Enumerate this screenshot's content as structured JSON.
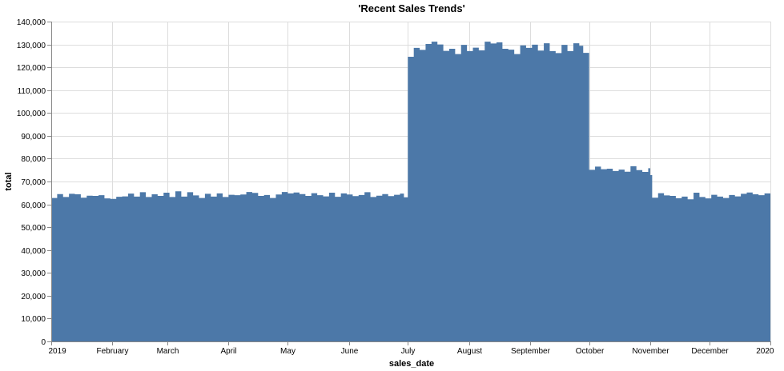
{
  "chart_data": {
    "type": "area",
    "title": "'Recent Sales Trends'",
    "xlabel": "sales_date",
    "ylabel": "total",
    "x_range": [
      "2019-01-01",
      "2020-01-01"
    ],
    "ylim": [
      0,
      140000
    ],
    "y_ticks": [
      0,
      10000,
      20000,
      30000,
      40000,
      50000,
      60000,
      70000,
      80000,
      90000,
      100000,
      110000,
      120000,
      130000,
      140000
    ],
    "y_tick_labels": [
      "0",
      "10,000",
      "20,000",
      "30,000",
      "40,000",
      "50,000",
      "60,000",
      "70,000",
      "80,000",
      "90,000",
      "100,000",
      "110,000",
      "120,000",
      "130,000",
      "140,000"
    ],
    "x_ticks": [
      {
        "date": "2019-01-01",
        "label": "2019"
      },
      {
        "date": "2019-02-01",
        "label": "February"
      },
      {
        "date": "2019-03-01",
        "label": "March"
      },
      {
        "date": "2019-04-01",
        "label": "April"
      },
      {
        "date": "2019-05-01",
        "label": "May"
      },
      {
        "date": "2019-06-01",
        "label": "June"
      },
      {
        "date": "2019-07-01",
        "label": "July"
      },
      {
        "date": "2019-08-01",
        "label": "August"
      },
      {
        "date": "2019-09-01",
        "label": "September"
      },
      {
        "date": "2019-10-01",
        "label": "October"
      },
      {
        "date": "2019-11-01",
        "label": "November"
      },
      {
        "date": "2019-12-01",
        "label": "December"
      },
      {
        "date": "2020-01-01",
        "label": "2020"
      }
    ],
    "grid": true,
    "color": "#4c78a8",
    "points": [
      [
        "2019-01-01",
        62800
      ],
      [
        "2019-01-04",
        64500
      ],
      [
        "2019-01-07",
        63200
      ],
      [
        "2019-01-10",
        64600
      ],
      [
        "2019-01-13",
        64400
      ],
      [
        "2019-01-16",
        62900
      ],
      [
        "2019-01-19",
        63800
      ],
      [
        "2019-01-22",
        63700
      ],
      [
        "2019-01-25",
        64000
      ],
      [
        "2019-01-28",
        62600
      ],
      [
        "2019-01-31",
        62400
      ],
      [
        "2019-02-03",
        63300
      ],
      [
        "2019-02-06",
        63500
      ],
      [
        "2019-02-09",
        64700
      ],
      [
        "2019-02-12",
        63400
      ],
      [
        "2019-02-15",
        65300
      ],
      [
        "2019-02-18",
        63200
      ],
      [
        "2019-02-21",
        64400
      ],
      [
        "2019-02-24",
        63700
      ],
      [
        "2019-02-27",
        65100
      ],
      [
        "2019-03-02",
        63200
      ],
      [
        "2019-03-05",
        65700
      ],
      [
        "2019-03-08",
        63400
      ],
      [
        "2019-03-11",
        65300
      ],
      [
        "2019-03-14",
        63900
      ],
      [
        "2019-03-17",
        62800
      ],
      [
        "2019-03-20",
        64600
      ],
      [
        "2019-03-23",
        63400
      ],
      [
        "2019-03-26",
        64800
      ],
      [
        "2019-03-29",
        63200
      ],
      [
        "2019-04-01",
        64200
      ],
      [
        "2019-04-04",
        64000
      ],
      [
        "2019-04-07",
        64300
      ],
      [
        "2019-04-10",
        65400
      ],
      [
        "2019-04-13",
        65000
      ],
      [
        "2019-04-16",
        63700
      ],
      [
        "2019-04-19",
        64100
      ],
      [
        "2019-04-22",
        62800
      ],
      [
        "2019-04-25",
        64300
      ],
      [
        "2019-04-28",
        65400
      ],
      [
        "2019-05-01",
        64800
      ],
      [
        "2019-05-04",
        65200
      ],
      [
        "2019-05-07",
        64500
      ],
      [
        "2019-05-10",
        63700
      ],
      [
        "2019-05-13",
        64900
      ],
      [
        "2019-05-16",
        64000
      ],
      [
        "2019-05-19",
        63500
      ],
      [
        "2019-05-22",
        65100
      ],
      [
        "2019-05-25",
        63300
      ],
      [
        "2019-05-28",
        64800
      ],
      [
        "2019-05-31",
        64300
      ],
      [
        "2019-06-03",
        63600
      ],
      [
        "2019-06-06",
        64100
      ],
      [
        "2019-06-09",
        65300
      ],
      [
        "2019-06-12",
        63200
      ],
      [
        "2019-06-15",
        63800
      ],
      [
        "2019-06-18",
        64500
      ],
      [
        "2019-06-21",
        63600
      ],
      [
        "2019-06-24",
        64200
      ],
      [
        "2019-06-27",
        64700
      ],
      [
        "2019-06-29",
        63100
      ],
      [
        "2019-07-01",
        124600
      ],
      [
        "2019-07-04",
        128500
      ],
      [
        "2019-07-07",
        127600
      ],
      [
        "2019-07-10",
        130200
      ],
      [
        "2019-07-13",
        131200
      ],
      [
        "2019-07-16",
        130000
      ],
      [
        "2019-07-19",
        127200
      ],
      [
        "2019-07-22",
        128100
      ],
      [
        "2019-07-25",
        125800
      ],
      [
        "2019-07-28",
        129800
      ],
      [
        "2019-07-31",
        127100
      ],
      [
        "2019-08-03",
        128600
      ],
      [
        "2019-08-06",
        127400
      ],
      [
        "2019-08-09",
        131200
      ],
      [
        "2019-08-12",
        130400
      ],
      [
        "2019-08-15",
        130900
      ],
      [
        "2019-08-18",
        128100
      ],
      [
        "2019-08-21",
        127700
      ],
      [
        "2019-08-24",
        125800
      ],
      [
        "2019-08-27",
        129600
      ],
      [
        "2019-08-30",
        128500
      ],
      [
        "2019-09-02",
        129900
      ],
      [
        "2019-09-05",
        127300
      ],
      [
        "2019-09-08",
        130500
      ],
      [
        "2019-09-11",
        127100
      ],
      [
        "2019-09-14",
        126200
      ],
      [
        "2019-09-17",
        129800
      ],
      [
        "2019-09-20",
        127100
      ],
      [
        "2019-09-23",
        130500
      ],
      [
        "2019-09-26",
        129400
      ],
      [
        "2019-09-28",
        126300
      ],
      [
        "2019-10-01",
        75100
      ],
      [
        "2019-10-04",
        76500
      ],
      [
        "2019-10-07",
        75400
      ],
      [
        "2019-10-10",
        75600
      ],
      [
        "2019-10-13",
        74600
      ],
      [
        "2019-10-16",
        75200
      ],
      [
        "2019-10-19",
        74300
      ],
      [
        "2019-10-22",
        76700
      ],
      [
        "2019-10-25",
        75000
      ],
      [
        "2019-10-28",
        74200
      ],
      [
        "2019-10-31",
        75800
      ],
      [
        "2019-11-01",
        72800
      ],
      [
        "2019-11-02",
        62900
      ],
      [
        "2019-11-05",
        64900
      ],
      [
        "2019-11-08",
        63900
      ],
      [
        "2019-11-11",
        63700
      ],
      [
        "2019-11-14",
        62700
      ],
      [
        "2019-11-17",
        63400
      ],
      [
        "2019-11-20",
        62200
      ],
      [
        "2019-11-23",
        65100
      ],
      [
        "2019-11-26",
        63200
      ],
      [
        "2019-11-29",
        62600
      ],
      [
        "2019-12-02",
        64200
      ],
      [
        "2019-12-05",
        63400
      ],
      [
        "2019-12-08",
        62800
      ],
      [
        "2019-12-11",
        64100
      ],
      [
        "2019-12-14",
        63500
      ],
      [
        "2019-12-17",
        64600
      ],
      [
        "2019-12-20",
        65200
      ],
      [
        "2019-12-23",
        64400
      ],
      [
        "2019-12-26",
        64000
      ],
      [
        "2019-12-29",
        64800
      ],
      [
        "2020-01-01",
        65100
      ]
    ]
  }
}
